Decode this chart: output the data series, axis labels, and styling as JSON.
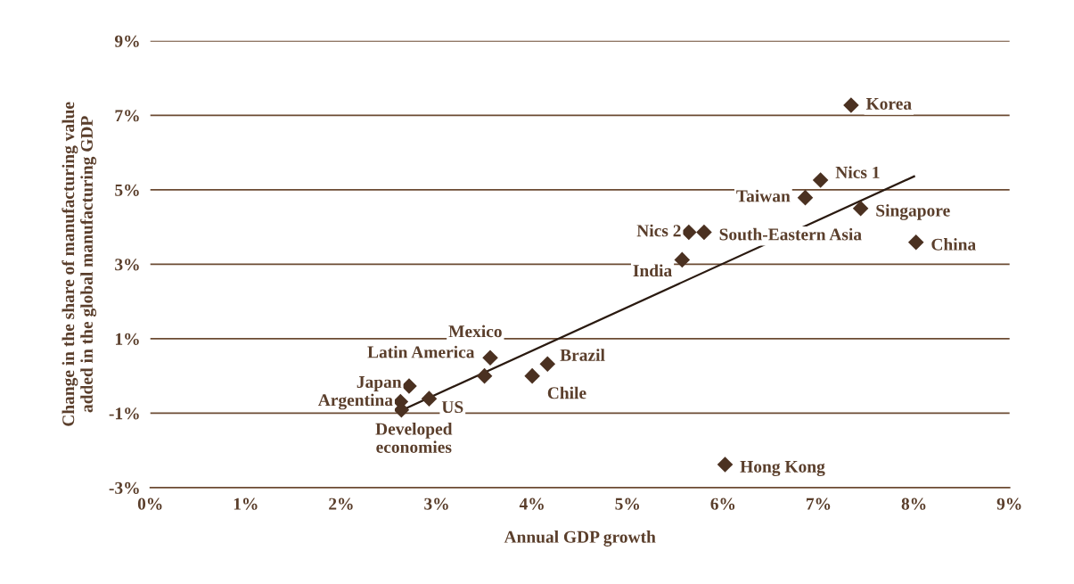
{
  "chart_data": {
    "type": "scatter",
    "xlabel": "Annual GDP growth",
    "ylabel": "Change in the share of manufacturing value\nadded in the global manufacturing GDP",
    "series": [
      {
        "marker": "diamond",
        "color": "#4b3121",
        "x": [
          7.34,
          7.02,
          6.86,
          7.44,
          8.02,
          5.8,
          5.64,
          5.57,
          3.56,
          3.5,
          4.16,
          4.0,
          2.71,
          2.92,
          2.62,
          2.63,
          6.02
        ],
        "values": [
          7.27,
          5.26,
          4.79,
          4.5,
          3.59,
          3.86,
          3.86,
          3.12,
          0.49,
          0.0,
          0.32,
          0.0,
          -0.27,
          -0.61,
          -0.69,
          -0.91,
          -2.38
        ]
      },
      {
        "type": "line",
        "marker": "none",
        "color": "#2a1a10",
        "x": [
          2.6,
          8.0
        ],
        "values": [
          -0.96,
          5.36
        ]
      }
    ],
    "annotations": [
      {
        "text": "Korea",
        "x": 7.34,
        "y": 7.27
      },
      {
        "text": "Nics 1",
        "x": 7.02,
        "y": 5.26
      },
      {
        "text": "Taiwan",
        "x": 6.86,
        "y": 4.79
      },
      {
        "text": "Singapore",
        "x": 7.44,
        "y": 4.5
      },
      {
        "text": "China",
        "x": 8.02,
        "y": 3.59
      },
      {
        "text": "South-Eastern Asia",
        "x": 5.8,
        "y": 3.86
      },
      {
        "text": "Nics 2",
        "x": 5.64,
        "y": 3.86
      },
      {
        "text": "India",
        "x": 5.57,
        "y": 3.12
      },
      {
        "text": "Mexico",
        "x": 3.56,
        "y": 0.49
      },
      {
        "text": "Latin America",
        "x": 3.5,
        "y": 0.0
      },
      {
        "text": "Brazil",
        "x": 4.16,
        "y": 0.32
      },
      {
        "text": "Chile",
        "x": 4.0,
        "y": 0.0
      },
      {
        "text": "Japan",
        "x": 2.71,
        "y": -0.27
      },
      {
        "text": "US",
        "x": 2.92,
        "y": -0.61
      },
      {
        "text": "Argentina",
        "x": 2.62,
        "y": -0.69
      },
      {
        "text": "Developed\neconomies",
        "x": 2.63,
        "y": -0.91
      },
      {
        "text": "Hong Kong",
        "x": 6.02,
        "y": -2.38
      }
    ],
    "xlim": [
      0,
      9
    ],
    "ylim": [
      -3,
      9
    ],
    "xticks": [
      {
        "value": 0,
        "label": "0%"
      },
      {
        "value": 1,
        "label": "1%"
      },
      {
        "value": 2,
        "label": "2%"
      },
      {
        "value": 3,
        "label": "3%"
      },
      {
        "value": 4,
        "label": "4%"
      },
      {
        "value": 5,
        "label": "5%"
      },
      {
        "value": 6,
        "label": "6%"
      },
      {
        "value": 7,
        "label": "7%"
      },
      {
        "value": 8,
        "label": "8%"
      },
      {
        "value": 9,
        "label": "9%"
      }
    ],
    "yticks": [
      {
        "value": -3,
        "label": "-3%"
      },
      {
        "value": -1,
        "label": "-1%"
      },
      {
        "value": 1,
        "label": "1%"
      },
      {
        "value": 3,
        "label": "3%"
      },
      {
        "value": 5,
        "label": "5%"
      },
      {
        "value": 7,
        "label": "7%"
      },
      {
        "value": 9,
        "label": "9%"
      }
    ],
    "grid": "y",
    "line_style": "solid"
  }
}
